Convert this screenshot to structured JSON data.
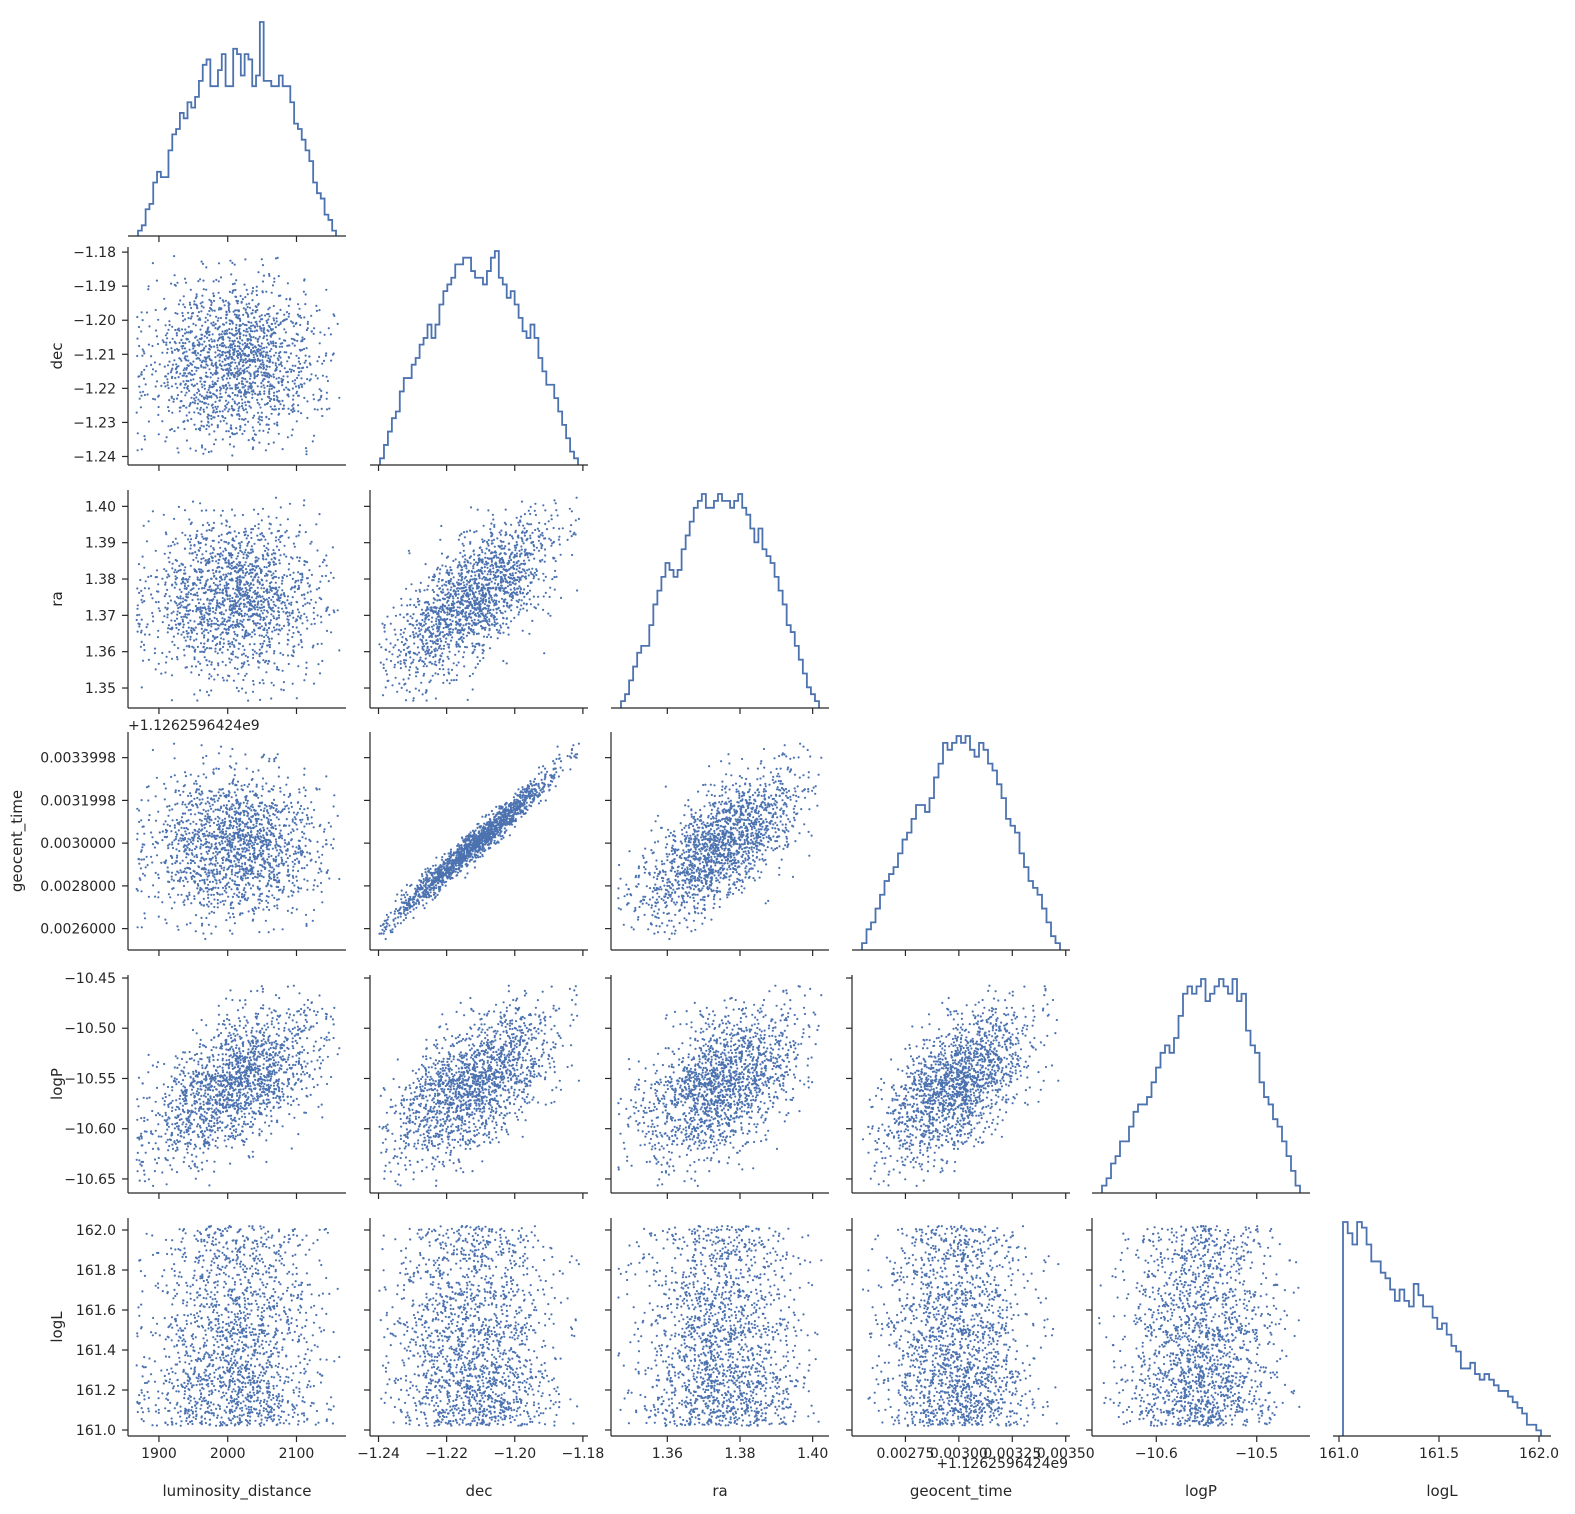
{
  "chart_data": {
    "type": "corner",
    "point_color": "#4c72b0",
    "line_color": "#4c72b0",
    "variables": [
      {
        "name": "luminosity_distance",
        "range": [
          1855,
          2172
        ],
        "ticks": [
          1900,
          2000,
          2100
        ],
        "tick_labels": [
          "1900",
          "2000",
          "2100"
        ],
        "stats": {
          "mean": 2012,
          "sd": 65
        },
        "histogram": [
          1,
          2,
          5,
          6,
          10,
          12,
          11,
          11,
          16,
          19,
          20,
          23,
          22,
          25,
          24,
          26,
          29,
          32,
          33,
          28,
          28,
          31,
          34,
          28,
          28,
          35,
          34,
          30,
          34,
          33,
          28,
          30,
          40,
          29,
          29,
          28,
          28,
          30,
          28,
          28,
          25,
          21,
          20,
          18,
          16,
          14,
          10,
          8,
          7,
          4,
          3,
          1
        ]
      },
      {
        "name": "dec",
        "range": [
          -1.2425,
          -1.1785
        ],
        "ticks": [
          -1.24,
          -1.23,
          -1.22,
          -1.21,
          -1.2,
          -1.19,
          -1.18
        ],
        "tick_labels": [
          "−1.24",
          "−1.23",
          "−1.22",
          "−1.21",
          "−1.20",
          "−1.19",
          "−1.18"
        ],
        "tick_labels_x": [
          "−1.24",
          "−1.22",
          "−1.20",
          "−1.18"
        ],
        "ticks_x": [
          -1.24,
          -1.22,
          -1.2,
          -1.18
        ],
        "stats": {
          "mean": -1.212,
          "sd": 0.0125
        },
        "histogram": [
          1,
          3,
          5,
          7,
          8,
          11,
          13,
          13,
          15,
          16,
          18,
          19,
          21,
          19,
          21,
          24,
          26,
          27,
          28,
          30,
          30,
          31,
          31,
          29,
          28,
          28,
          27,
          29,
          31,
          32,
          28,
          27,
          25,
          26,
          24,
          22,
          20,
          19,
          21,
          19,
          16,
          14,
          12,
          12,
          10,
          8,
          6,
          4,
          2,
          1
        ]
      },
      {
        "name": "ra",
        "range": [
          1.3445,
          1.4045
        ],
        "ticks": [
          1.35,
          1.36,
          1.37,
          1.38,
          1.39,
          1.4
        ],
        "tick_labels": [
          "1.35",
          "1.36",
          "1.37",
          "1.38",
          "1.39",
          "1.40"
        ],
        "tick_labels_x": [
          "1.36",
          "1.38",
          "1.40"
        ],
        "ticks_x": [
          1.36,
          1.38,
          1.4
        ],
        "stats": {
          "mean": 1.3745,
          "sd": 0.0116
        },
        "histogram": [
          1,
          2,
          4,
          6,
          8,
          9,
          9,
          12,
          15,
          17,
          19,
          21,
          20,
          19,
          20,
          23,
          25,
          27,
          29,
          30,
          31,
          29,
          29,
          30,
          31,
          30,
          30,
          29,
          30,
          31,
          29,
          28,
          26,
          24,
          26,
          23,
          22,
          21,
          19,
          17,
          15,
          12,
          11,
          9,
          7,
          5,
          3,
          2,
          1
        ]
      },
      {
        "name": "geocent_time",
        "range": [
          0.0025,
          0.00352
        ],
        "ticks": [
          0.0026,
          0.0028,
          0.003,
          0.0032,
          0.0034
        ],
        "tick_labels": [
          "0.0026000",
          "0.0028000",
          "0.0030000",
          "0.0031998",
          "0.0033998"
        ],
        "ticks_x": [
          0.00275,
          0.003,
          0.00325,
          0.0035
        ],
        "tick_labels_x": [
          "0.00275",
          "0.00300",
          "0.00325",
          "0.00350"
        ],
        "offset_label_y": "+1.1262596424e9",
        "offset_label_x": "+1.1262596424e9",
        "stats": {
          "mean": 0.00299,
          "sd": 0.00018
        },
        "histogram": [
          1,
          3,
          4,
          6,
          8,
          10,
          11,
          12,
          14,
          16,
          17,
          19,
          21,
          21,
          20,
          22,
          25,
          27,
          30,
          29,
          30,
          31,
          30,
          31,
          29,
          28,
          30,
          29,
          27,
          26,
          24,
          22,
          19,
          18,
          17,
          14,
          12,
          10,
          9,
          8,
          6,
          4,
          2,
          1
        ]
      },
      {
        "name": "logP",
        "range": [
          -10.664,
          -10.447
        ],
        "ticks": [
          -10.65,
          -10.6,
          -10.55,
          -10.5,
          -10.45
        ],
        "tick_labels": [
          "−10.65",
          "−10.60",
          "−10.55",
          "−10.50",
          "−10.45"
        ],
        "ticks_x": [
          -10.6,
          -10.5
        ],
        "tick_labels_x": [
          "−10.6",
          "−10.5"
        ],
        "stats": {
          "mean": -10.555,
          "sd": 0.04
        },
        "histogram": [
          1,
          2,
          4,
          5,
          7,
          7,
          9,
          11,
          12,
          12,
          13,
          15,
          17,
          19,
          20,
          19,
          21,
          24,
          27,
          28,
          27,
          28,
          29,
          26,
          27,
          28,
          29,
          28,
          27,
          29,
          26,
          27,
          22,
          20,
          19,
          15,
          13,
          12,
          10,
          9,
          7,
          5,
          3,
          1
        ]
      },
      {
        "name": "logL",
        "range": [
          160.97,
          162.06
        ],
        "ticks": [
          161.0,
          161.2,
          161.4,
          161.6,
          161.8,
          162.0
        ],
        "tick_labels": [
          "161.0",
          "161.2",
          "161.4",
          "161.6",
          "161.8",
          "162.0"
        ],
        "ticks_x": [
          161.0,
          161.5,
          162.0
        ],
        "tick_labels_x": [
          "161.0",
          "161.5",
          "162.0"
        ],
        "stats": {
          "min": 161.02,
          "max": 162.02
        },
        "histogram": [
          38,
          36,
          34,
          38,
          37,
          34,
          31,
          31,
          29,
          28,
          26,
          24,
          26,
          24,
          23,
          27,
          25,
          23,
          23,
          21,
          19,
          20,
          18,
          16,
          15,
          12,
          12,
          13,
          11,
          10,
          11,
          10,
          9,
          8,
          8,
          7,
          6,
          5,
          4,
          2,
          2,
          1
        ]
      }
    ],
    "correlations": [
      [
        1.0,
        0.0,
        0.0,
        0.0,
        0.55,
        -0.05
      ],
      [
        0.0,
        1.0,
        0.7,
        0.98,
        0.65,
        0.0
      ],
      [
        0.0,
        0.7,
        1.0,
        0.68,
        0.45,
        0.0
      ],
      [
        0.0,
        0.98,
        0.68,
        1.0,
        0.65,
        0.0
      ],
      [
        0.55,
        0.65,
        0.45,
        0.65,
        1.0,
        0.0
      ],
      [
        -0.05,
        0.0,
        0.0,
        0.0,
        0.0,
        1.0
      ]
    ],
    "n_samples": 1800
  }
}
